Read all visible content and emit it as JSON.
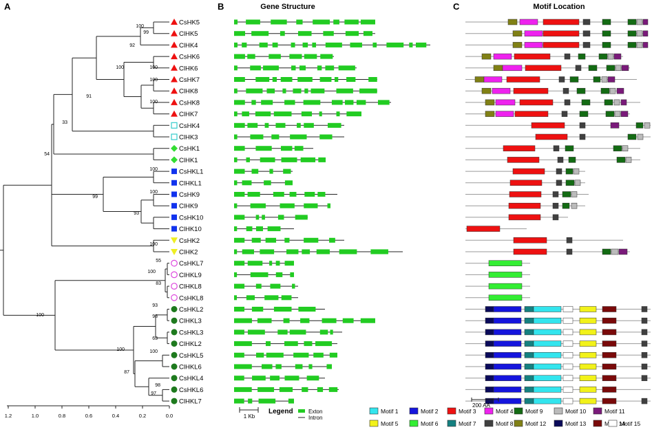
{
  "panels": {
    "A": "A",
    "B": "B",
    "C": "C"
  },
  "titles": {
    "gene_structure": "Gene Structure",
    "motif_location": "Motif Location"
  },
  "tree": {
    "axis_ticks": [
      "1.2",
      "1.0",
      "0.8",
      "0.6",
      "0.4",
      "0.2",
      "0.0"
    ],
    "bootstrap": [
      "100",
      "99",
      "92",
      "100",
      "100",
      "100",
      "100",
      "91",
      "33",
      "54",
      "100",
      "99",
      "100",
      "93",
      "100",
      "55",
      "100",
      "83",
      "93",
      "98",
      "63",
      "100",
      "100",
      "87",
      "98",
      "97",
      "100"
    ]
  },
  "genes": [
    {
      "name": "CsHK5",
      "shape": "triangle",
      "color": "#ee1111"
    },
    {
      "name": "ClHK5",
      "shape": "triangle",
      "color": "#ee1111"
    },
    {
      "name": "ClHK4",
      "shape": "triangle",
      "color": "#ee1111"
    },
    {
      "name": "CsHK6",
      "shape": "triangle",
      "color": "#ee1111"
    },
    {
      "name": "ClHK6",
      "shape": "triangle",
      "color": "#ee1111"
    },
    {
      "name": "CsHK7",
      "shape": "triangle",
      "color": "#ee1111"
    },
    {
      "name": "ClHK8",
      "shape": "triangle",
      "color": "#ee1111"
    },
    {
      "name": "CsHK8",
      "shape": "triangle",
      "color": "#ee1111"
    },
    {
      "name": "ClHK7",
      "shape": "triangle",
      "color": "#ee1111"
    },
    {
      "name": "CsHK4",
      "shape": "square-open",
      "color": "#33cccc"
    },
    {
      "name": "ClHK3",
      "shape": "square-open",
      "color": "#33cccc"
    },
    {
      "name": "CsHK1",
      "shape": "diamond",
      "color": "#33dd33"
    },
    {
      "name": "ClHK1",
      "shape": "diamond",
      "color": "#33dd33"
    },
    {
      "name": "CsHKL1",
      "shape": "square",
      "color": "#1133ee"
    },
    {
      "name": "ClHKL1",
      "shape": "square",
      "color": "#1133ee"
    },
    {
      "name": "CsHK9",
      "shape": "square",
      "color": "#1133ee"
    },
    {
      "name": "ClHK9",
      "shape": "square",
      "color": "#1133ee"
    },
    {
      "name": "CsHK10",
      "shape": "square",
      "color": "#1133ee"
    },
    {
      "name": "ClHK10",
      "shape": "square",
      "color": "#1133ee"
    },
    {
      "name": "CsHK2",
      "shape": "triangle-down",
      "color": "#eeee22"
    },
    {
      "name": "ClHK2",
      "shape": "triangle-down",
      "color": "#eeee22"
    },
    {
      "name": "CsHKL7",
      "shape": "circle-open",
      "color": "#dd44dd"
    },
    {
      "name": "ClHKL9",
      "shape": "circle-open",
      "color": "#dd44dd"
    },
    {
      "name": "ClHKL8",
      "shape": "circle-open",
      "color": "#dd44dd"
    },
    {
      "name": "CsHKL8",
      "shape": "circle-open",
      "color": "#dd44dd"
    },
    {
      "name": "CsHKL2",
      "shape": "circle",
      "color": "#1e7a1e"
    },
    {
      "name": "ClHKL3",
      "shape": "circle",
      "color": "#1e7a1e"
    },
    {
      "name": "CsHKL3",
      "shape": "circle",
      "color": "#1e7a1e"
    },
    {
      "name": "ClHKL2",
      "shape": "circle",
      "color": "#1e7a1e"
    },
    {
      "name": "CsHKL5",
      "shape": "circle",
      "color": "#1e7a1e"
    },
    {
      "name": "ClHKL6",
      "shape": "circle",
      "color": "#1e7a1e"
    },
    {
      "name": "CsHKL4",
      "shape": "circle",
      "color": "#1e7a1e"
    },
    {
      "name": "CsHKL6",
      "shape": "circle",
      "color": "#1e7a1e"
    },
    {
      "name": "ClHKL7",
      "shape": "circle",
      "color": "#1e7a1e"
    }
  ],
  "gene_structure": {
    "scale_label": "1 Kb",
    "legend_title": "Legend",
    "legend_exon": "Exton",
    "legend_intron": "Intron",
    "exon_color": "#22cc22"
  },
  "motif_location": {
    "scale_label": "200 AA",
    "legend": [
      {
        "label": "Motif 1",
        "color": "#33e5ee"
      },
      {
        "label": "Motif 2",
        "color": "#1515dd"
      },
      {
        "label": "Motif 3",
        "color": "#ee1111"
      },
      {
        "label": "Motif 4",
        "color": "#ee22ee"
      },
      {
        "label": "Motif 5",
        "color": "#f2f21a"
      },
      {
        "label": "Motif 6",
        "color": "#33ee33"
      },
      {
        "label": "Motif 7",
        "color": "#148080"
      },
      {
        "label": "Motif 8",
        "color": "#404040"
      },
      {
        "label": "Motif 9",
        "color": "#136b13"
      },
      {
        "label": "Motif 10",
        "color": "#bbbbbb"
      },
      {
        "label": "Motif 11",
        "color": "#7a1a7a"
      },
      {
        "label": "Motif 12",
        "color": "#808015"
      },
      {
        "label": "Motif 13",
        "color": "#0a0a5a"
      },
      {
        "label": "Motif 14",
        "color": "#7a0a0a"
      },
      {
        "label": "Motif 15",
        "color": "#ffffff"
      }
    ]
  }
}
